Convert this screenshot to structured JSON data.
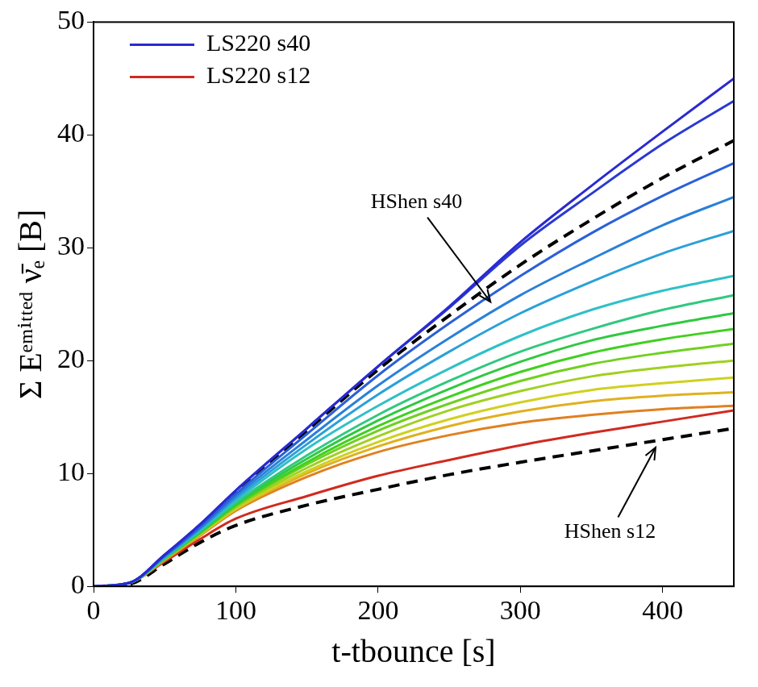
{
  "chart_data": {
    "type": "line",
    "x_label": "t-tbounce [s]",
    "y_label": "Σ Eᵉᵐⁱᵗᵗᵉᵈ ν̄ₑ [B]",
    "x": [
      0,
      25,
      50,
      75,
      100,
      150,
      200,
      250,
      300,
      350,
      400,
      450
    ],
    "xlim": [
      0,
      450
    ],
    "xticks": [
      0,
      100,
      200,
      300,
      400
    ],
    "ylim": [
      0,
      50
    ],
    "yticks": [
      0,
      10,
      20,
      30,
      40,
      50
    ],
    "grid": false,
    "legend": "upper left",
    "series": [
      {
        "name": "LS220 s40",
        "color": "#2a2ad0",
        "line_style": "solid",
        "values": [
          0,
          0.3,
          2.8,
          5.5,
          8.5,
          14,
          19.5,
          24.8,
          30.5,
          35.5,
          40.3,
          45
        ]
      },
      {
        "color": "#2a3ad0",
        "line_style": "solid",
        "values": [
          0,
          0.3,
          2.8,
          5.5,
          8.5,
          14,
          19.5,
          24.7,
          30.2,
          34.8,
          39.2,
          43
        ]
      },
      {
        "color": "#2a60d8",
        "line_style": "solid",
        "values": [
          0,
          0.3,
          2.7,
          5.3,
          8.2,
          13.5,
          18.7,
          23.3,
          27.5,
          31.3,
          34.6,
          37.5
        ]
      },
      {
        "color": "#2a80d8",
        "line_style": "solid",
        "values": [
          0,
          0.3,
          2.7,
          5.2,
          8,
          13,
          17.8,
          22,
          25.8,
          29,
          32,
          34.5
        ]
      },
      {
        "color": "#2aa0d8",
        "line_style": "solid",
        "values": [
          0,
          0.3,
          2.6,
          5.1,
          7.8,
          12.6,
          17,
          20.8,
          24.2,
          27,
          29.5,
          31.5
        ]
      },
      {
        "color": "#30c0c8",
        "line_style": "solid",
        "values": [
          0,
          0.3,
          2.6,
          5,
          7.6,
          12.2,
          16,
          19.3,
          22.2,
          24.5,
          26.2,
          27.5
        ]
      },
      {
        "color": "#30c880",
        "line_style": "solid",
        "values": [
          0,
          0.3,
          2.5,
          4.9,
          7.4,
          11.6,
          15.2,
          18.2,
          20.8,
          22.8,
          24.5,
          25.8
        ]
      },
      {
        "color": "#30c840",
        "line_style": "solid",
        "values": [
          0,
          0.3,
          2.5,
          4.8,
          7.3,
          11.3,
          14.7,
          17.5,
          19.9,
          21.8,
          23.1,
          24.2
        ]
      },
      {
        "color": "#40d020",
        "line_style": "solid",
        "values": [
          0,
          0.3,
          2.5,
          4.8,
          7.2,
          11,
          14.2,
          16.8,
          19,
          20.7,
          21.9,
          22.8
        ]
      },
      {
        "color": "#70d020",
        "line_style": "solid",
        "values": [
          0,
          0.3,
          2.4,
          4.7,
          7.1,
          10.8,
          13.8,
          16.2,
          18.2,
          19.7,
          20.7,
          21.5
        ]
      },
      {
        "color": "#a0d020",
        "line_style": "solid",
        "values": [
          0,
          0.3,
          2.4,
          4.7,
          7,
          10.5,
          13.3,
          15.6,
          17.3,
          18.6,
          19.4,
          20
        ]
      },
      {
        "color": "#d0d020",
        "line_style": "solid",
        "values": [
          0,
          0.3,
          2.4,
          4.6,
          6.9,
          10.2,
          12.8,
          14.8,
          16.3,
          17.4,
          18,
          18.5
        ]
      },
      {
        "color": "#e0b020",
        "line_style": "solid",
        "values": [
          0,
          0.3,
          2.4,
          4.6,
          6.8,
          10,
          12.4,
          14.2,
          15.5,
          16.4,
          16.9,
          17.2
        ]
      },
      {
        "color": "#e08020",
        "line_style": "solid",
        "values": [
          0,
          0.3,
          2.3,
          4.5,
          6.7,
          9.7,
          11.9,
          13.4,
          14.5,
          15.2,
          15.7,
          16
        ]
      },
      {
        "name": "LS220 s12",
        "color": "#d02a20",
        "line_style": "solid",
        "values": [
          0,
          0.3,
          2.2,
          4.2,
          6,
          8,
          9.8,
          11.2,
          12.5,
          13.6,
          14.6,
          15.6
        ]
      },
      {
        "color": "#000000",
        "line_style": "dashed",
        "values": [
          0,
          0.2,
          2.5,
          5.2,
          8.3,
          13.8,
          19.2,
          24,
          28.5,
          32.5,
          36.2,
          39.5
        ]
      },
      {
        "color": "#000000",
        "line_style": "dashed",
        "values": [
          0,
          0.2,
          2,
          3.9,
          5.4,
          7.2,
          8.6,
          9.9,
          11,
          12,
          13,
          14
        ]
      }
    ],
    "annotations": [
      {
        "text": "HShen s40",
        "x": 227,
        "y": 34,
        "arrow_to": [
          279,
          25.2
        ]
      },
      {
        "text": "HShen s12",
        "x": 363,
        "y": 4.8,
        "arrow_to": [
          395,
          12.3
        ]
      }
    ]
  }
}
